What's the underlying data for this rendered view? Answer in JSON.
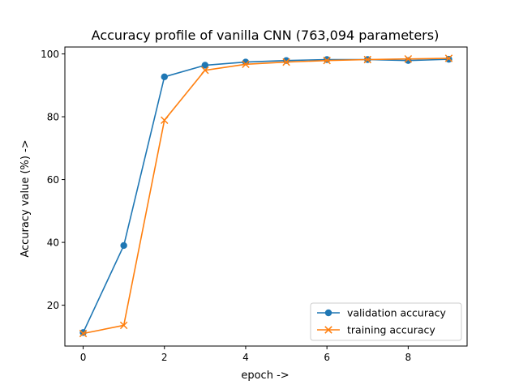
{
  "chart_data": {
    "type": "line",
    "title": "Accuracy profile of vanilla CNN (763,094 parameters)",
    "xlabel": "epoch ->",
    "ylabel": "Accuracy value (%) ->",
    "xlim": [
      -0.45,
      9.45
    ],
    "ylim": [
      7.0,
      102.2
    ],
    "xticks": [
      "0",
      "2",
      "4",
      "6",
      "8"
    ],
    "yticks": [
      "20",
      "40",
      "60",
      "80",
      "100"
    ],
    "legend_position": "lower-right",
    "grid": false,
    "series": [
      {
        "name": "validation accuracy",
        "marker": "circle",
        "color": "#1f77b4",
        "x": [
          0,
          1,
          2,
          3,
          4,
          5,
          6,
          7,
          8,
          9
        ],
        "y": [
          11.3,
          39.0,
          92.7,
          96.4,
          97.4,
          97.9,
          98.2,
          98.2,
          97.9,
          98.3
        ]
      },
      {
        "name": "training accuracy",
        "marker": "x",
        "color": "#ff7f0e",
        "x": [
          0,
          1,
          2,
          3,
          4,
          5,
          6,
          7,
          8,
          9
        ],
        "y": [
          11.0,
          13.6,
          78.9,
          94.8,
          96.7,
          97.4,
          97.9,
          98.2,
          98.4,
          98.6
        ]
      }
    ]
  }
}
